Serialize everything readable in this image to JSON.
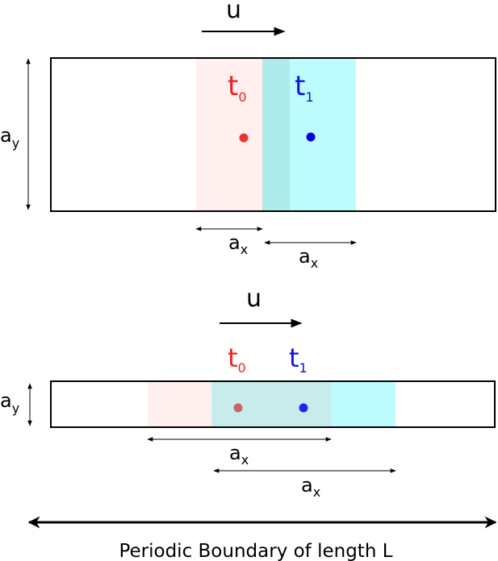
{
  "top": {
    "velocity": "u",
    "t0": {
      "base": "t",
      "sub": "0"
    },
    "t1": {
      "base": "t",
      "sub": "1"
    },
    "ay": {
      "base": "a",
      "sub": "y"
    },
    "ax_first": {
      "base": "a",
      "sub": "x"
    },
    "ax_second": {
      "base": "a",
      "sub": "x"
    }
  },
  "bottom": {
    "velocity": "u",
    "t0": {
      "base": "t",
      "sub": "0"
    },
    "t1": {
      "base": "t",
      "sub": "1"
    },
    "ay": {
      "base": "a",
      "sub": "y"
    },
    "ax_first": {
      "base": "a",
      "sub": "x"
    },
    "ax_second": {
      "base": "a",
      "sub": "x"
    }
  },
  "footer": "Periodic Boundary of length L"
}
